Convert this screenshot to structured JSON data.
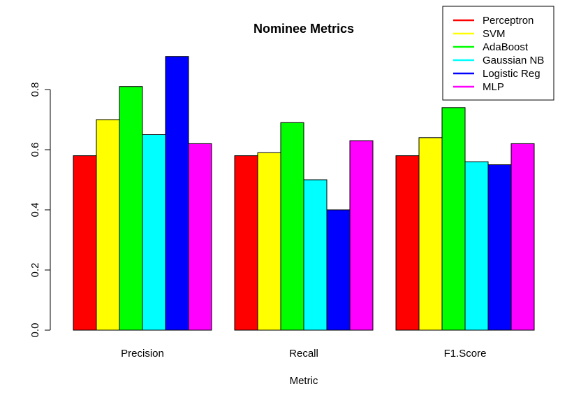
{
  "chart_data": {
    "type": "bar",
    "title": "Nominee Metrics",
    "xlabel": "Metric",
    "ylabel": "",
    "ylim": [
      0,
      0.9
    ],
    "yticks": [
      "0.0",
      "0.2",
      "0.4",
      "0.6",
      "0.8"
    ],
    "categories": [
      "Precision",
      "Recall",
      "F1.Score"
    ],
    "legend_position": "top-right",
    "grid": false,
    "series": [
      {
        "name": "Perceptron",
        "color": "#ff0000",
        "values": [
          0.58,
          0.58,
          0.58
        ]
      },
      {
        "name": "SVM",
        "color": "#ffff00",
        "values": [
          0.7,
          0.59,
          0.64
        ]
      },
      {
        "name": "AdaBoost",
        "color": "#00ff00",
        "values": [
          0.81,
          0.69,
          0.74
        ]
      },
      {
        "name": "Gaussian NB",
        "color": "#00ffff",
        "values": [
          0.65,
          0.5,
          0.56
        ]
      },
      {
        "name": "Logistic Reg",
        "color": "#0000ff",
        "values": [
          0.91,
          0.4,
          0.55
        ]
      },
      {
        "name": "MLP",
        "color": "#ff00ff",
        "values": [
          0.62,
          0.63,
          0.62
        ]
      }
    ]
  }
}
